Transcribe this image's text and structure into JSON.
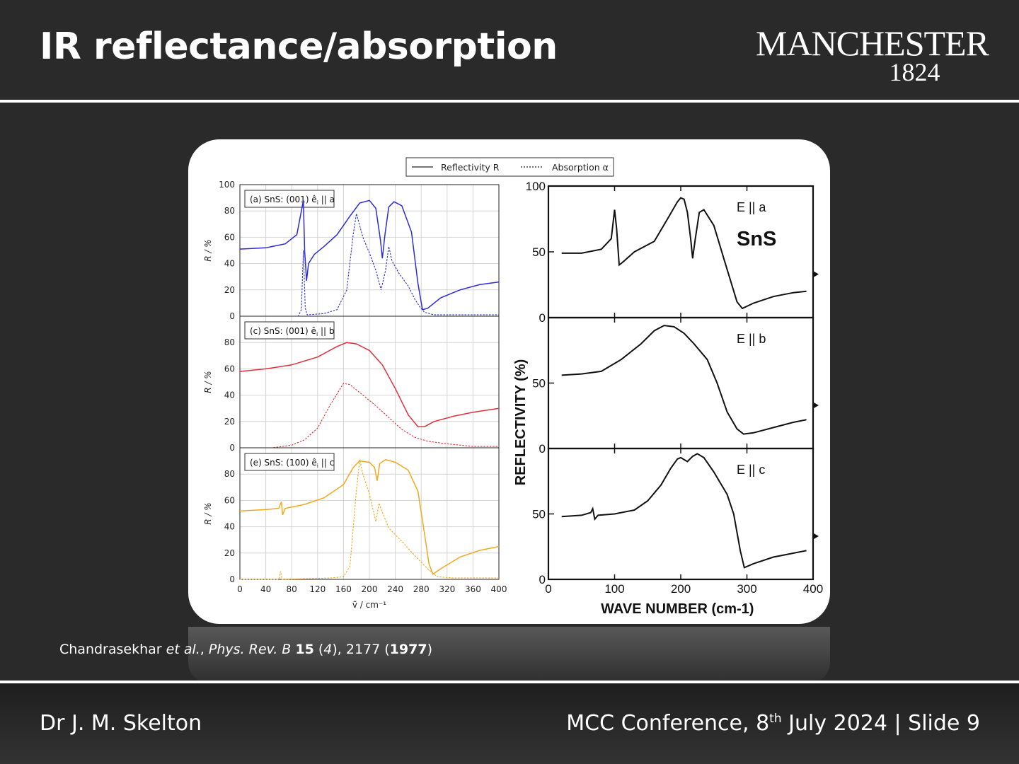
{
  "slide": {
    "title": "IR reflectance/absorption",
    "logo": {
      "word": "MANCHESTER",
      "year": "1824"
    },
    "citation": {
      "authors": "Chandrasekhar",
      "etal": "et al.",
      "journal": "Phys. Rev. B",
      "volume": "15",
      "issue_pre": " (",
      "issue": "4",
      "issue_post": "), 2177 (",
      "year": "1977",
      "close": ")"
    },
    "footer": {
      "author": "Dr J. M. Skelton",
      "event_pre": "MCC Conference, 8",
      "event_sup": "th",
      "event_post": " July 2024 | Slide 9"
    },
    "colors": {
      "background": "#2a2a2a",
      "text": "#ffffff",
      "blue": "#2b2bd9",
      "red": "#e0303a",
      "orange": "#f2a81c"
    }
  },
  "chart_data": [
    {
      "type": "line",
      "legend": {
        "solid": "Reflectivity R",
        "dashed": "Absorption α",
        "position": "top"
      },
      "xlabel": "ṽ / cm⁻¹",
      "xlim": [
        0,
        400
      ],
      "xticks": [
        "0",
        "40",
        "80",
        "120",
        "160",
        "200",
        "240",
        "280",
        "320",
        "360",
        "400"
      ],
      "ylabel": "R / %",
      "ylim": [
        0,
        100
      ],
      "grid": true,
      "panels": [
        {
          "label": "(a) SnS: (001) ê",
          "sub": "i",
          "tail": " || a",
          "color": "#2b2bd9",
          "yticks": [
            "0",
            "20",
            "40",
            "60",
            "80",
            "100"
          ],
          "reflectivity": [
            [
              0,
              51
            ],
            [
              40,
              52
            ],
            [
              70,
              55
            ],
            [
              88,
              62
            ],
            [
              95,
              80
            ],
            [
              98,
              88
            ],
            [
              100,
              50
            ],
            [
              103,
              27
            ],
            [
              106,
              40
            ],
            [
              115,
              47
            ],
            [
              130,
              53
            ],
            [
              150,
              62
            ],
            [
              170,
              76
            ],
            [
              185,
              86
            ],
            [
              200,
              88
            ],
            [
              210,
              82
            ],
            [
              217,
              58
            ],
            [
              220,
              44
            ],
            [
              224,
              62
            ],
            [
              230,
              83
            ],
            [
              238,
              87
            ],
            [
              250,
              84
            ],
            [
              265,
              64
            ],
            [
              275,
              25
            ],
            [
              282,
              5
            ],
            [
              290,
              6
            ],
            [
              310,
              14
            ],
            [
              340,
              20
            ],
            [
              370,
              24
            ],
            [
              400,
              26
            ]
          ],
          "absorption": [
            [
              0,
              0
            ],
            [
              90,
              0
            ],
            [
              95,
              5
            ],
            [
              98,
              50
            ],
            [
              101,
              6
            ],
            [
              104,
              1
            ],
            [
              130,
              2
            ],
            [
              150,
              5
            ],
            [
              165,
              20
            ],
            [
              175,
              62
            ],
            [
              180,
              78
            ],
            [
              190,
              60
            ],
            [
              200,
              48
            ],
            [
              210,
              35
            ],
            [
              218,
              20
            ],
            [
              225,
              35
            ],
            [
              230,
              53
            ],
            [
              235,
              42
            ],
            [
              245,
              33
            ],
            [
              260,
              23
            ],
            [
              270,
              13
            ],
            [
              278,
              7
            ],
            [
              285,
              3
            ],
            [
              300,
              1
            ],
            [
              340,
              1
            ],
            [
              400,
              1
            ]
          ]
        },
        {
          "label": "(c) SnS: (001) ê",
          "sub": "i",
          "tail": " || b",
          "color": "#e0303a",
          "yticks": [
            "0",
            "20",
            "40",
            "60",
            "80"
          ],
          "reflectivity": [
            [
              0,
              58
            ],
            [
              40,
              60
            ],
            [
              80,
              63
            ],
            [
              120,
              69
            ],
            [
              150,
              77
            ],
            [
              165,
              80
            ],
            [
              180,
              79
            ],
            [
              200,
              74
            ],
            [
              220,
              63
            ],
            [
              240,
              45
            ],
            [
              260,
              25
            ],
            [
              275,
              16
            ],
            [
              285,
              16
            ],
            [
              300,
              20
            ],
            [
              330,
              24
            ],
            [
              360,
              27
            ],
            [
              400,
              30
            ]
          ],
          "absorption": [
            [
              0,
              0
            ],
            [
              50,
              0
            ],
            [
              80,
              2
            ],
            [
              100,
              6
            ],
            [
              120,
              15
            ],
            [
              140,
              33
            ],
            [
              160,
              49
            ],
            [
              170,
              48
            ],
            [
              190,
              40
            ],
            [
              210,
              32
            ],
            [
              230,
              23
            ],
            [
              250,
              14
            ],
            [
              270,
              8
            ],
            [
              290,
              5
            ],
            [
              320,
              3
            ],
            [
              360,
              1
            ],
            [
              400,
              1
            ]
          ]
        },
        {
          "label": "(e) SnS: (100) ê",
          "sub": "i",
          "tail": " || c",
          "color": "#f2a81c",
          "yticks": [
            "0",
            "20",
            "40",
            "60",
            "80"
          ],
          "reflectivity": [
            [
              0,
              52
            ],
            [
              40,
              53
            ],
            [
              60,
              54
            ],
            [
              64,
              59
            ],
            [
              66,
              49
            ],
            [
              70,
              54
            ],
            [
              100,
              57
            ],
            [
              130,
              62
            ],
            [
              160,
              72
            ],
            [
              175,
              85
            ],
            [
              185,
              90
            ],
            [
              200,
              89
            ],
            [
              208,
              85
            ],
            [
              212,
              75
            ],
            [
              216,
              88
            ],
            [
              225,
              91
            ],
            [
              240,
              89
            ],
            [
              260,
              83
            ],
            [
              275,
              67
            ],
            [
              285,
              35
            ],
            [
              292,
              12
            ],
            [
              298,
              4
            ],
            [
              310,
              8
            ],
            [
              340,
              17
            ],
            [
              370,
              22
            ],
            [
              400,
              25
            ]
          ],
          "absorption": [
            [
              0,
              0
            ],
            [
              60,
              0
            ],
            [
              63,
              6
            ],
            [
              65,
              0
            ],
            [
              140,
              1
            ],
            [
              160,
              2
            ],
            [
              170,
              10
            ],
            [
              180,
              68
            ],
            [
              185,
              91
            ],
            [
              190,
              80
            ],
            [
              200,
              65
            ],
            [
              210,
              44
            ],
            [
              215,
              58
            ],
            [
              220,
              51
            ],
            [
              230,
              39
            ],
            [
              250,
              29
            ],
            [
              270,
              18
            ],
            [
              290,
              8
            ],
            [
              305,
              2
            ],
            [
              330,
              1
            ],
            [
              400,
              1
            ]
          ]
        }
      ]
    },
    {
      "type": "line",
      "xlabel": "WAVE NUMBER (cm-1)",
      "xlim": [
        0,
        400
      ],
      "xticks": [
        "0",
        "100",
        "200",
        "300",
        "400"
      ],
      "ylabel": "REFLECTIVITY (%)",
      "ylim": [
        0,
        100
      ],
      "panels": [
        {
          "label": "E || a",
          "annotation": "SnS",
          "yticks": [
            "0",
            "50",
            "100"
          ],
          "reflectivity": [
            [
              20,
              49
            ],
            [
              50,
              49
            ],
            [
              80,
              52
            ],
            [
              95,
              60
            ],
            [
              100,
              82
            ],
            [
              103,
              68
            ],
            [
              107,
              40
            ],
            [
              112,
              42
            ],
            [
              130,
              50
            ],
            [
              160,
              58
            ],
            [
              180,
              75
            ],
            [
              195,
              88
            ],
            [
              200,
              91
            ],
            [
              205,
              90
            ],
            [
              210,
              80
            ],
            [
              215,
              60
            ],
            [
              218,
              45
            ],
            [
              222,
              60
            ],
            [
              228,
              80
            ],
            [
              235,
              82
            ],
            [
              250,
              70
            ],
            [
              265,
              45
            ],
            [
              285,
              12
            ],
            [
              293,
              7
            ],
            [
              310,
              11
            ],
            [
              340,
              16
            ],
            [
              370,
              19
            ],
            [
              390,
              20
            ]
          ]
        },
        {
          "label": "E || b",
          "yticks": [
            "0",
            "50"
          ],
          "reflectivity": [
            [
              20,
              56
            ],
            [
              50,
              57
            ],
            [
              80,
              59
            ],
            [
              110,
              68
            ],
            [
              140,
              80
            ],
            [
              160,
              90
            ],
            [
              175,
              94
            ],
            [
              190,
              93
            ],
            [
              205,
              88
            ],
            [
              220,
              80
            ],
            [
              240,
              68
            ],
            [
              255,
              50
            ],
            [
              270,
              28
            ],
            [
              285,
              15
            ],
            [
              295,
              11
            ],
            [
              310,
              12
            ],
            [
              340,
              16
            ],
            [
              370,
              20
            ],
            [
              390,
              22
            ]
          ]
        },
        {
          "label": "E || c",
          "yticks": [
            "0",
            "50"
          ],
          "reflectivity": [
            [
              20,
              48
            ],
            [
              50,
              49
            ],
            [
              64,
              51
            ],
            [
              67,
              54
            ],
            [
              70,
              46
            ],
            [
              75,
              49
            ],
            [
              100,
              50
            ],
            [
              130,
              53
            ],
            [
              150,
              60
            ],
            [
              170,
              72
            ],
            [
              185,
              85
            ],
            [
              195,
              92
            ],
            [
              200,
              93
            ],
            [
              210,
              90
            ],
            [
              218,
              94
            ],
            [
              225,
              96
            ],
            [
              235,
              93
            ],
            [
              250,
              82
            ],
            [
              270,
              65
            ],
            [
              280,
              50
            ],
            [
              290,
              22
            ],
            [
              296,
              9
            ],
            [
              310,
              12
            ],
            [
              340,
              17
            ],
            [
              370,
              20
            ],
            [
              390,
              22
            ]
          ]
        }
      ]
    }
  ]
}
